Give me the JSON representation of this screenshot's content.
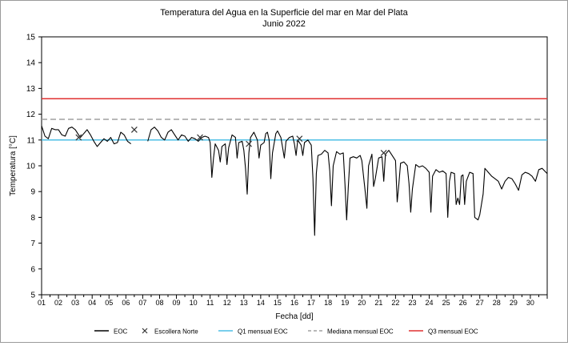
{
  "chart_data": {
    "type": "line",
    "title": "Temperatura del Agua en la Superficie del mar en Mar del Plata",
    "subtitle": "Junio 2022",
    "xlabel": "Fecha [dd]",
    "ylabel": "Temperatura [°C]",
    "ylim": [
      5,
      15
    ],
    "yticks": [
      "5",
      "6",
      "7",
      "8",
      "9",
      "10",
      "11",
      "12",
      "13",
      "14",
      "15"
    ],
    "xlim": [
      1,
      31
    ],
    "xticks": [
      "01",
      "02",
      "03",
      "04",
      "05",
      "06",
      "07",
      "08",
      "09",
      "10",
      "11",
      "12",
      "13",
      "14",
      "15",
      "16",
      "17",
      "18",
      "19",
      "20",
      "21",
      "22",
      "23",
      "24",
      "25",
      "26",
      "27",
      "28",
      "29",
      "30"
    ],
    "grid": false,
    "legend_position": "bottom",
    "series": [
      {
        "name": "EOC",
        "color": "#000000",
        "points": [
          [
            1.0,
            11.55
          ],
          [
            1.2,
            11.15
          ],
          [
            1.4,
            11.05
          ],
          [
            1.6,
            11.45
          ],
          [
            1.8,
            11.4
          ],
          [
            2.0,
            11.4
          ],
          [
            2.2,
            11.2
          ],
          [
            2.4,
            11.15
          ],
          [
            2.6,
            11.45
          ],
          [
            2.8,
            11.5
          ],
          [
            3.0,
            11.4
          ],
          [
            3.2,
            11.2
          ],
          [
            3.3,
            11.1
          ],
          [
            3.5,
            11.25
          ],
          [
            3.7,
            11.4
          ],
          [
            3.9,
            11.2
          ],
          [
            4.1,
            10.95
          ],
          [
            4.3,
            10.75
          ],
          [
            4.5,
            10.9
          ],
          [
            4.7,
            11.05
          ],
          [
            4.9,
            10.95
          ],
          [
            5.1,
            11.1
          ],
          [
            5.3,
            10.85
          ],
          [
            5.5,
            10.9
          ],
          [
            5.7,
            11.3
          ],
          [
            5.9,
            11.2
          ],
          [
            6.1,
            10.95
          ],
          [
            6.3,
            10.85
          ],
          null,
          [
            7.3,
            10.95
          ],
          [
            7.5,
            11.4
          ],
          [
            7.7,
            11.5
          ],
          [
            7.9,
            11.35
          ],
          [
            8.1,
            11.1
          ],
          [
            8.3,
            11.0
          ],
          [
            8.5,
            11.3
          ],
          [
            8.7,
            11.4
          ],
          [
            8.9,
            11.2
          ],
          [
            9.1,
            11.0
          ],
          [
            9.3,
            11.2
          ],
          [
            9.5,
            11.15
          ],
          [
            9.7,
            10.95
          ],
          [
            9.9,
            11.1
          ],
          [
            10.1,
            11.05
          ],
          [
            10.3,
            10.95
          ],
          [
            10.5,
            11.1
          ],
          [
            10.7,
            11.15
          ],
          [
            10.9,
            11.1
          ],
          [
            11.0,
            10.9
          ],
          [
            11.1,
            9.55
          ],
          [
            11.2,
            10.3
          ],
          [
            11.3,
            10.85
          ],
          [
            11.5,
            10.6
          ],
          [
            11.6,
            10.15
          ],
          [
            11.7,
            10.75
          ],
          [
            11.9,
            10.85
          ],
          [
            12.0,
            10.05
          ],
          [
            12.1,
            10.7
          ],
          [
            12.3,
            11.2
          ],
          [
            12.5,
            11.1
          ],
          [
            12.6,
            10.3
          ],
          [
            12.7,
            10.9
          ],
          [
            12.9,
            10.95
          ],
          [
            13.0,
            10.6
          ],
          [
            13.1,
            9.9
          ],
          [
            13.2,
            8.9
          ],
          [
            13.3,
            10.5
          ],
          [
            13.4,
            11.1
          ],
          [
            13.6,
            11.3
          ],
          [
            13.8,
            11.0
          ],
          [
            13.9,
            10.3
          ],
          [
            14.0,
            10.8
          ],
          [
            14.2,
            10.9
          ],
          [
            14.3,
            11.25
          ],
          [
            14.4,
            11.3
          ],
          [
            14.5,
            11.0
          ],
          [
            14.6,
            9.5
          ],
          [
            14.7,
            10.5
          ],
          [
            14.9,
            11.25
          ],
          [
            15.0,
            11.35
          ],
          [
            15.2,
            11.1
          ],
          [
            15.3,
            10.7
          ],
          [
            15.4,
            10.3
          ],
          [
            15.5,
            10.95
          ],
          [
            15.7,
            11.1
          ],
          [
            15.9,
            11.15
          ],
          [
            16.0,
            10.85
          ],
          [
            16.1,
            10.4
          ],
          [
            16.2,
            11.0
          ],
          [
            16.4,
            10.8
          ],
          [
            16.5,
            10.4
          ],
          [
            16.6,
            10.9
          ],
          [
            16.8,
            11.0
          ],
          [
            17.0,
            10.8
          ],
          [
            17.1,
            9.5
          ],
          [
            17.2,
            7.3
          ],
          [
            17.3,
            9.7
          ],
          [
            17.4,
            10.4
          ],
          [
            17.6,
            10.45
          ],
          [
            17.8,
            10.6
          ],
          [
            18.0,
            10.5
          ],
          [
            18.1,
            9.8
          ],
          [
            18.2,
            8.45
          ],
          [
            18.3,
            10.0
          ],
          [
            18.5,
            10.55
          ],
          [
            18.7,
            10.45
          ],
          [
            18.9,
            10.5
          ],
          [
            19.0,
            9.3
          ],
          [
            19.1,
            7.9
          ],
          [
            19.2,
            9.2
          ],
          [
            19.3,
            10.3
          ],
          [
            19.5,
            10.35
          ],
          [
            19.7,
            10.3
          ],
          [
            19.9,
            10.4
          ],
          [
            20.0,
            10.2
          ],
          [
            20.2,
            9.0
          ],
          [
            20.3,
            8.35
          ],
          [
            20.4,
            10.0
          ],
          [
            20.6,
            10.45
          ],
          [
            20.7,
            9.2
          ],
          [
            20.8,
            9.5
          ],
          [
            21.0,
            10.3
          ],
          [
            21.2,
            10.35
          ],
          [
            21.3,
            9.4
          ],
          [
            21.4,
            10.45
          ],
          [
            21.6,
            10.6
          ],
          [
            21.8,
            10.4
          ],
          [
            22.0,
            10.2
          ],
          [
            22.1,
            8.6
          ],
          [
            22.2,
            9.3
          ],
          [
            22.3,
            10.1
          ],
          [
            22.5,
            10.15
          ],
          [
            22.7,
            10.0
          ],
          [
            22.8,
            9.3
          ],
          [
            22.9,
            8.2
          ],
          [
            23.0,
            9.1
          ],
          [
            23.2,
            10.05
          ],
          [
            23.4,
            9.95
          ],
          [
            23.6,
            10.0
          ],
          [
            23.8,
            9.9
          ],
          [
            24.0,
            9.75
          ],
          [
            24.1,
            8.2
          ],
          [
            24.2,
            9.6
          ],
          [
            24.4,
            9.85
          ],
          [
            24.6,
            9.75
          ],
          [
            24.8,
            9.8
          ],
          [
            25.0,
            9.7
          ],
          [
            25.1,
            8.0
          ],
          [
            25.2,
            9.4
          ],
          [
            25.3,
            9.75
          ],
          [
            25.5,
            9.7
          ],
          [
            25.6,
            8.5
          ],
          [
            25.7,
            8.75
          ],
          [
            25.8,
            8.5
          ],
          [
            25.9,
            9.6
          ],
          [
            26.0,
            9.65
          ],
          [
            26.1,
            8.5
          ],
          [
            26.2,
            9.4
          ],
          [
            26.4,
            9.75
          ],
          [
            26.6,
            9.7
          ],
          [
            26.7,
            8.0
          ],
          [
            26.9,
            7.9
          ],
          [
            27.0,
            8.1
          ],
          [
            27.2,
            8.9
          ],
          [
            27.3,
            9.9
          ],
          [
            27.5,
            9.75
          ],
          [
            27.7,
            9.6
          ],
          [
            27.9,
            9.5
          ],
          [
            28.1,
            9.4
          ],
          [
            28.3,
            9.1
          ],
          [
            28.5,
            9.4
          ],
          [
            28.7,
            9.55
          ],
          [
            28.9,
            9.5
          ],
          [
            29.1,
            9.3
          ],
          [
            29.3,
            9.05
          ],
          [
            29.5,
            9.65
          ],
          [
            29.7,
            9.75
          ],
          [
            29.9,
            9.7
          ],
          [
            30.1,
            9.6
          ],
          [
            30.3,
            9.4
          ],
          [
            30.5,
            9.85
          ],
          [
            30.7,
            9.9
          ],
          [
            31.0,
            9.7
          ]
        ]
      },
      {
        "name": "Escollera Norte",
        "color": "#333333",
        "marker": "x",
        "points": [
          [
            3.2,
            11.1
          ],
          [
            6.5,
            11.4
          ],
          [
            10.4,
            11.1
          ],
          [
            13.3,
            10.85
          ],
          [
            16.3,
            11.05
          ],
          [
            21.3,
            10.5
          ]
        ]
      },
      {
        "name": "Q1 mensual EOC",
        "color": "#4dbfe6",
        "y": 11.0
      },
      {
        "name": "Mediana mensual EOC",
        "color": "#a0a0a0",
        "y": 11.8,
        "dashed": true
      },
      {
        "name": "Q3 mensual EOC",
        "color": "#e03030",
        "y": 12.6
      }
    ]
  }
}
